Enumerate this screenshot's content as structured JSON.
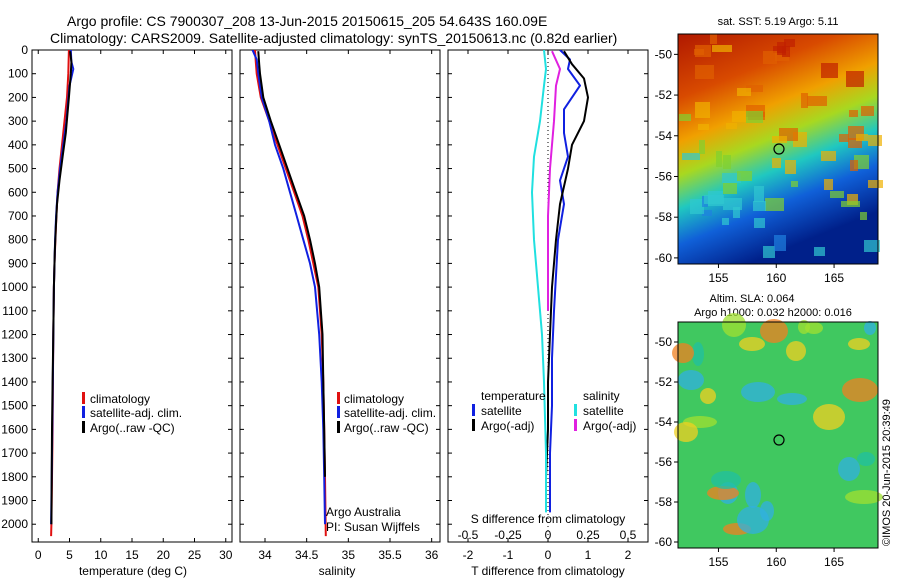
{
  "header": {
    "line1": "Argo profile: CS 7900307_208 13-Jun-2015 20150615_205 54.643S 160.09E",
    "line2": "Climatology: CARS2009. Satellite-adjusted climatology: synTS_20150613.nc (0.82d earlier)"
  },
  "colors": {
    "climatology": "#e01010",
    "satellite": "#1020e0",
    "argo": "#000000",
    "sat_salinity": "#20e0e0",
    "argo_adj_salinity": "#e020e0"
  },
  "legend_left": {
    "climatology": "climatology",
    "satellite": "satellite-adj. clim.",
    "argo": "Argo(..raw -QC)"
  },
  "legend_diff": {
    "temperature_head": "temperature",
    "salinity_head": "salinity",
    "satellite": "satellite",
    "argo": "Argo(-adj)"
  },
  "credit": {
    "line1": "Argo Australia",
    "line2": "PI: Susan Wijffels"
  },
  "watermark": "©IMOS 20-Jun-2015 20:39:49",
  "chart_data": [
    {
      "type": "line",
      "name": "temperature-profile",
      "xlabel": "temperature (deg C)",
      "ylabel": "",
      "xlim": [
        -1,
        31
      ],
      "ylim": [
        2075,
        0
      ],
      "xticks": [
        0,
        5,
        10,
        15,
        20,
        25,
        30
      ],
      "yticks": [
        0,
        100,
        200,
        300,
        400,
        500,
        600,
        700,
        800,
        900,
        1000,
        1100,
        1200,
        1300,
        1400,
        1500,
        1600,
        1700,
        1800,
        1900,
        2000
      ],
      "series": [
        {
          "key": "climatology",
          "x": [
            4.9,
            4.8,
            4.6,
            4.2,
            3.8,
            3.4,
            3.1,
            2.9,
            2.75,
            2.6,
            2.5,
            2.4,
            2.35,
            2.3,
            2.25,
            2.2,
            2.15,
            2.1,
            2.05
          ],
          "y": [
            0,
            100,
            200,
            300,
            400,
            500,
            600,
            700,
            800,
            900,
            1000,
            1200,
            1400,
            1600,
            1700,
            1800,
            1900,
            2000,
            2050
          ]
        },
        {
          "key": "satellite",
          "x": [
            5.2,
            5.3,
            5.6,
            5.0,
            4.5,
            4.0,
            3.5,
            3.1,
            2.85,
            2.7,
            2.6,
            2.5,
            2.4,
            2.3,
            2.2,
            2.1,
            2.05
          ],
          "y": [
            0,
            50,
            80,
            150,
            300,
            400,
            500,
            600,
            700,
            800,
            900,
            1000,
            1200,
            1500,
            1700,
            1900,
            2000
          ]
        },
        {
          "key": "argo",
          "x": [
            5.1,
            5.3,
            5.2,
            4.9,
            4.4,
            3.9,
            3.4,
            3.0,
            2.8,
            2.65,
            2.5,
            2.4,
            2.3,
            2.2,
            2.15,
            2.1
          ],
          "y": [
            5,
            50,
            100,
            200,
            350,
            450,
            550,
            650,
            750,
            850,
            1000,
            1200,
            1400,
            1600,
            1800,
            2000
          ]
        }
      ]
    },
    {
      "type": "line",
      "name": "salinity-profile",
      "xlabel": "salinity",
      "ylabel": "",
      "xlim": [
        33.7,
        36.1
      ],
      "ylim": [
        2075,
        0
      ],
      "xticks": [
        34,
        34.5,
        35,
        35.5,
        36
      ],
      "xticklabels": [
        "34",
        "34.5",
        "35",
        "35.5",
        "36"
      ],
      "series": [
        {
          "key": "climatology",
          "x": [
            33.88,
            33.89,
            33.9,
            33.95,
            34.05,
            34.15,
            34.25,
            34.35,
            34.45,
            34.52,
            34.58,
            34.64,
            34.68,
            34.7,
            34.71,
            34.72,
            34.73
          ],
          "y": [
            0,
            50,
            100,
            200,
            300,
            400,
            500,
            600,
            700,
            800,
            900,
            1000,
            1200,
            1400,
            1600,
            1800,
            2050
          ]
        },
        {
          "key": "satellite",
          "x": [
            33.85,
            33.9,
            33.92,
            33.96,
            34.05,
            34.12,
            34.22,
            34.3,
            34.38,
            34.46,
            34.54,
            34.6,
            34.65,
            34.68,
            34.7,
            34.71,
            34.72
          ],
          "y": [
            0,
            40,
            100,
            200,
            300,
            400,
            500,
            600,
            700,
            800,
            900,
            1000,
            1200,
            1400,
            1600,
            1800,
            2000
          ]
        },
        {
          "key": "argo",
          "x": [
            33.92,
            33.93,
            33.94,
            33.98,
            34.07,
            34.17,
            34.27,
            34.37,
            34.47,
            34.54,
            34.6,
            34.65,
            34.69,
            34.7,
            34.71,
            34.72
          ],
          "y": [
            5,
            60,
            100,
            200,
            300,
            400,
            500,
            600,
            700,
            800,
            900,
            1000,
            1200,
            1400,
            1600,
            1800
          ]
        }
      ]
    },
    {
      "type": "line",
      "name": "difference-profile",
      "xlabel": "T difference from climatology",
      "xlabel_top": "S difference from climatology",
      "xlim": [
        -2.5,
        2.5
      ],
      "ylim": [
        2075,
        0
      ],
      "xticks": [
        -2,
        -1,
        0,
        1,
        2
      ],
      "xticks_top": [
        -0.5,
        -0.25,
        0,
        0.25,
        0.5
      ],
      "xticks_top_pos": [
        -2,
        -1,
        0,
        1,
        2
      ],
      "series": [
        {
          "key": "t_satellite",
          "x": [
            0.3,
            0.55,
            0.5,
            0.8,
            0.4,
            0.4,
            0.5,
            0.3,
            0.4,
            0.25,
            0.2,
            0.15,
            0.1,
            0.1,
            0.05,
            0.05
          ],
          "y": [
            0,
            40,
            80,
            150,
            250,
            350,
            450,
            550,
            650,
            800,
            950,
            1100,
            1300,
            1500,
            1700,
            1950
          ]
        },
        {
          "key": "t_argo",
          "x": [
            0.4,
            0.6,
            0.9,
            1.0,
            0.9,
            0.6,
            0.5,
            0.3,
            0.2,
            0.1,
            0.05,
            0.0,
            0.0,
            -0.05
          ],
          "y": [
            5,
            60,
            120,
            200,
            300,
            400,
            500,
            650,
            800,
            1000,
            1200,
            1400,
            1600,
            1800
          ]
        },
        {
          "key": "s_satellite",
          "x": [
            -0.1,
            -0.05,
            -0.1,
            -0.2,
            -0.35,
            -0.4,
            -0.35,
            -0.25,
            -0.15,
            -0.1,
            -0.05,
            -0.05
          ],
          "y": [
            0,
            80,
            150,
            300,
            450,
            600,
            800,
            1000,
            1200,
            1400,
            1700,
            1950
          ]
        },
        {
          "key": "s_argo",
          "x": [
            0.1,
            0.3,
            0.2,
            0.15,
            0.05,
            0.0,
            0.0,
            0.0
          ],
          "y": [
            5,
            80,
            150,
            300,
            500,
            700,
            900,
            1100
          ]
        }
      ]
    },
    {
      "type": "heatmap",
      "name": "sst-map",
      "title": "sat. SST: 5.19 Argo: 5.11",
      "xlim": [
        151.5,
        168.8
      ],
      "ylim": [
        -60.3,
        -49
      ],
      "xticks": [
        155,
        160,
        165
      ],
      "yticks": [
        -50,
        -52,
        -54,
        -56,
        -58,
        -60
      ],
      "argo_location": [
        160.09,
        -54.643
      ]
    },
    {
      "type": "heatmap",
      "name": "sla-map",
      "title_line1": "Altim. SLA: 0.064",
      "title_line2": "Argo h1000: 0.032 h2000: 0.016",
      "xlim": [
        151.5,
        168.8
      ],
      "ylim": [
        -60.3,
        -49
      ],
      "xticks": [
        155,
        160,
        165
      ],
      "yticks": [
        -50,
        -52,
        -54,
        -56,
        -58,
        -60
      ],
      "argo_location": [
        160.09,
        -54.643
      ]
    }
  ]
}
